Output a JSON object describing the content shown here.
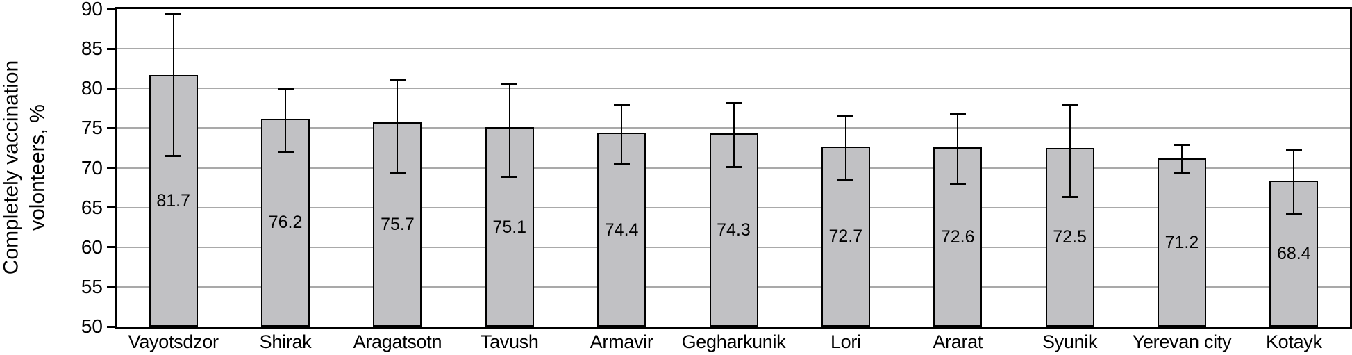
{
  "chart_data": {
    "type": "bar",
    "title": "",
    "xlabel": "",
    "ylabel_lines": [
      "Completely vaccination",
      "volonteers, %"
    ],
    "ylim": [
      50,
      90
    ],
    "ytick_values": [
      90,
      85,
      80,
      75,
      70,
      65,
      60,
      55,
      50
    ],
    "ytick_labels": [
      "90",
      "85",
      "80",
      "75",
      "70",
      "65",
      "60",
      "55",
      "50"
    ],
    "grid": "horizontal gray lines at ticks, black frame around plot",
    "legend": "none",
    "categories": [
      "Vayotsdzor",
      "Shirak",
      "Aragatsotn",
      "Tavush",
      "Armavir",
      "Gegharkunik",
      "Lori",
      "Ararat",
      "Syunik",
      "Yerevan city",
      "Kotayk"
    ],
    "values": [
      81.7,
      76.2,
      75.7,
      75.1,
      74.4,
      74.3,
      72.7,
      72.6,
      72.5,
      71.2,
      68.4
    ],
    "value_labels": [
      "81.7",
      "76.2",
      "75.7",
      "75.1",
      "74.4",
      "74.3",
      "72.7",
      "72.6",
      "72.5",
      "71.2",
      "68.4"
    ],
    "error_low": [
      71.5,
      72.0,
      69.4,
      68.9,
      70.4,
      70.1,
      68.4,
      67.9,
      66.3,
      69.4,
      64.1
    ],
    "error_high": [
      89.3,
      79.9,
      81.1,
      80.5,
      78.0,
      78.1,
      76.5,
      76.8,
      78.0,
      72.9,
      72.3
    ],
    "colors": {
      "bar_fill": "#c1c1c4",
      "bar_border": "#000000",
      "grid_color": "#a9a9a9",
      "axis_color": "#000000",
      "text_color": "#000000",
      "background": "#ffffff"
    }
  }
}
